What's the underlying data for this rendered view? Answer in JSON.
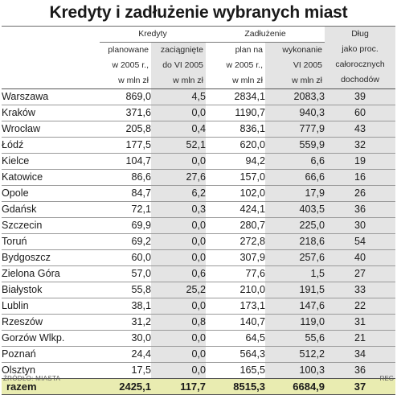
{
  "title": "Kredyty i zadłużenie wybranych miast",
  "header": {
    "group_kredyty": "Kredyty",
    "group_zadluzenie": "Zadłużenie",
    "col_planowane": [
      "planowane",
      "w 2005 r.,",
      "w mln zł"
    ],
    "col_zaciagniete": [
      "zaciągnięte",
      "do VI 2005",
      "w mln zł"
    ],
    "col_plan_na": [
      "plan na",
      "w 2005 r.,",
      "w mln zł"
    ],
    "col_wykonanie": [
      "wykonanie",
      "VI 2005",
      "w mln zł"
    ],
    "col_dlug": [
      "Dług",
      "jako proc.",
      "całorocznych",
      "dochodów"
    ]
  },
  "rows": [
    {
      "city": "Warszawa",
      "planowane": "869,0",
      "zaciagniete": "4,5",
      "plan": "2834,1",
      "wykonanie": "2083,3",
      "dlug": "39"
    },
    {
      "city": "Kraków",
      "planowane": "371,6",
      "zaciagniete": "0,0",
      "plan": "1190,7",
      "wykonanie": "940,3",
      "dlug": "60"
    },
    {
      "city": "Wrocław",
      "planowane": "205,8",
      "zaciagniete": "0,4",
      "plan": "836,1",
      "wykonanie": "777,9",
      "dlug": "43"
    },
    {
      "city": "Łódź",
      "planowane": "177,5",
      "zaciagniete": "52,1",
      "plan": "620,0",
      "wykonanie": "559,9",
      "dlug": "32"
    },
    {
      "city": "Kielce",
      "planowane": "104,7",
      "zaciagniete": "0,0",
      "plan": "94,2",
      "wykonanie": "6,6",
      "dlug": "19"
    },
    {
      "city": "Katowice",
      "planowane": "86,6",
      "zaciagniete": "27,6",
      "plan": "157,0",
      "wykonanie": "66,6",
      "dlug": "16"
    },
    {
      "city": "Opole",
      "planowane": "84,7",
      "zaciagniete": "6,2",
      "plan": "102,0",
      "wykonanie": "17,9",
      "dlug": "26"
    },
    {
      "city": "Gdańsk",
      "planowane": "72,1",
      "zaciagniete": "0,3",
      "plan": "424,1",
      "wykonanie": "403,5",
      "dlug": "36"
    },
    {
      "city": "Szczecin",
      "planowane": "69,9",
      "zaciagniete": "0,0",
      "plan": "280,7",
      "wykonanie": "225,0",
      "dlug": "30"
    },
    {
      "city": "Toruń",
      "planowane": "69,2",
      "zaciagniete": "0,0",
      "plan": "272,8",
      "wykonanie": "218,6",
      "dlug": "54"
    },
    {
      "city": "Bydgoszcz",
      "planowane": "60,0",
      "zaciagniete": "0,0",
      "plan": "307,9",
      "wykonanie": "257,6",
      "dlug": "40"
    },
    {
      "city": "Zielona Góra",
      "planowane": "57,0",
      "zaciagniete": "0,6",
      "plan": "77,6",
      "wykonanie": "1,5",
      "dlug": "27"
    },
    {
      "city": "Białystok",
      "planowane": "55,8",
      "zaciagniete": "25,2",
      "plan": "210,0",
      "wykonanie": "191,5",
      "dlug": "33"
    },
    {
      "city": "Lublin",
      "planowane": "38,1",
      "zaciagniete": "0,0",
      "plan": "173,1",
      "wykonanie": "147,6",
      "dlug": "22"
    },
    {
      "city": "Rzeszów",
      "planowane": "31,2",
      "zaciagniete": "0,8",
      "plan": "140,7",
      "wykonanie": "119,0",
      "dlug": "31"
    },
    {
      "city": "Gorzów Wlkp.",
      "planowane": "30,0",
      "zaciagniete": "0,0",
      "plan": "64,5",
      "wykonanie": "55,6",
      "dlug": "21"
    },
    {
      "city": "Poznań",
      "planowane": "24,4",
      "zaciagniete": "0,0",
      "plan": "564,3",
      "wykonanie": "512,2",
      "dlug": "34"
    },
    {
      "city": "Olsztyn",
      "planowane": "17,5",
      "zaciagniete": "0,0",
      "plan": "165,5",
      "wykonanie": "100,3",
      "dlug": "36"
    }
  ],
  "total": {
    "label": "razem",
    "planowane": "2425,1",
    "zaciagniete": "117,7",
    "plan": "8515,3",
    "wykonanie": "6684,9",
    "dlug": "37"
  },
  "footer": {
    "source": "ŹRÓDŁO: MIASTA",
    "credit": "REG"
  },
  "colors": {
    "shade": "#e4e4e4",
    "total_bg": "#e9ecb1"
  }
}
